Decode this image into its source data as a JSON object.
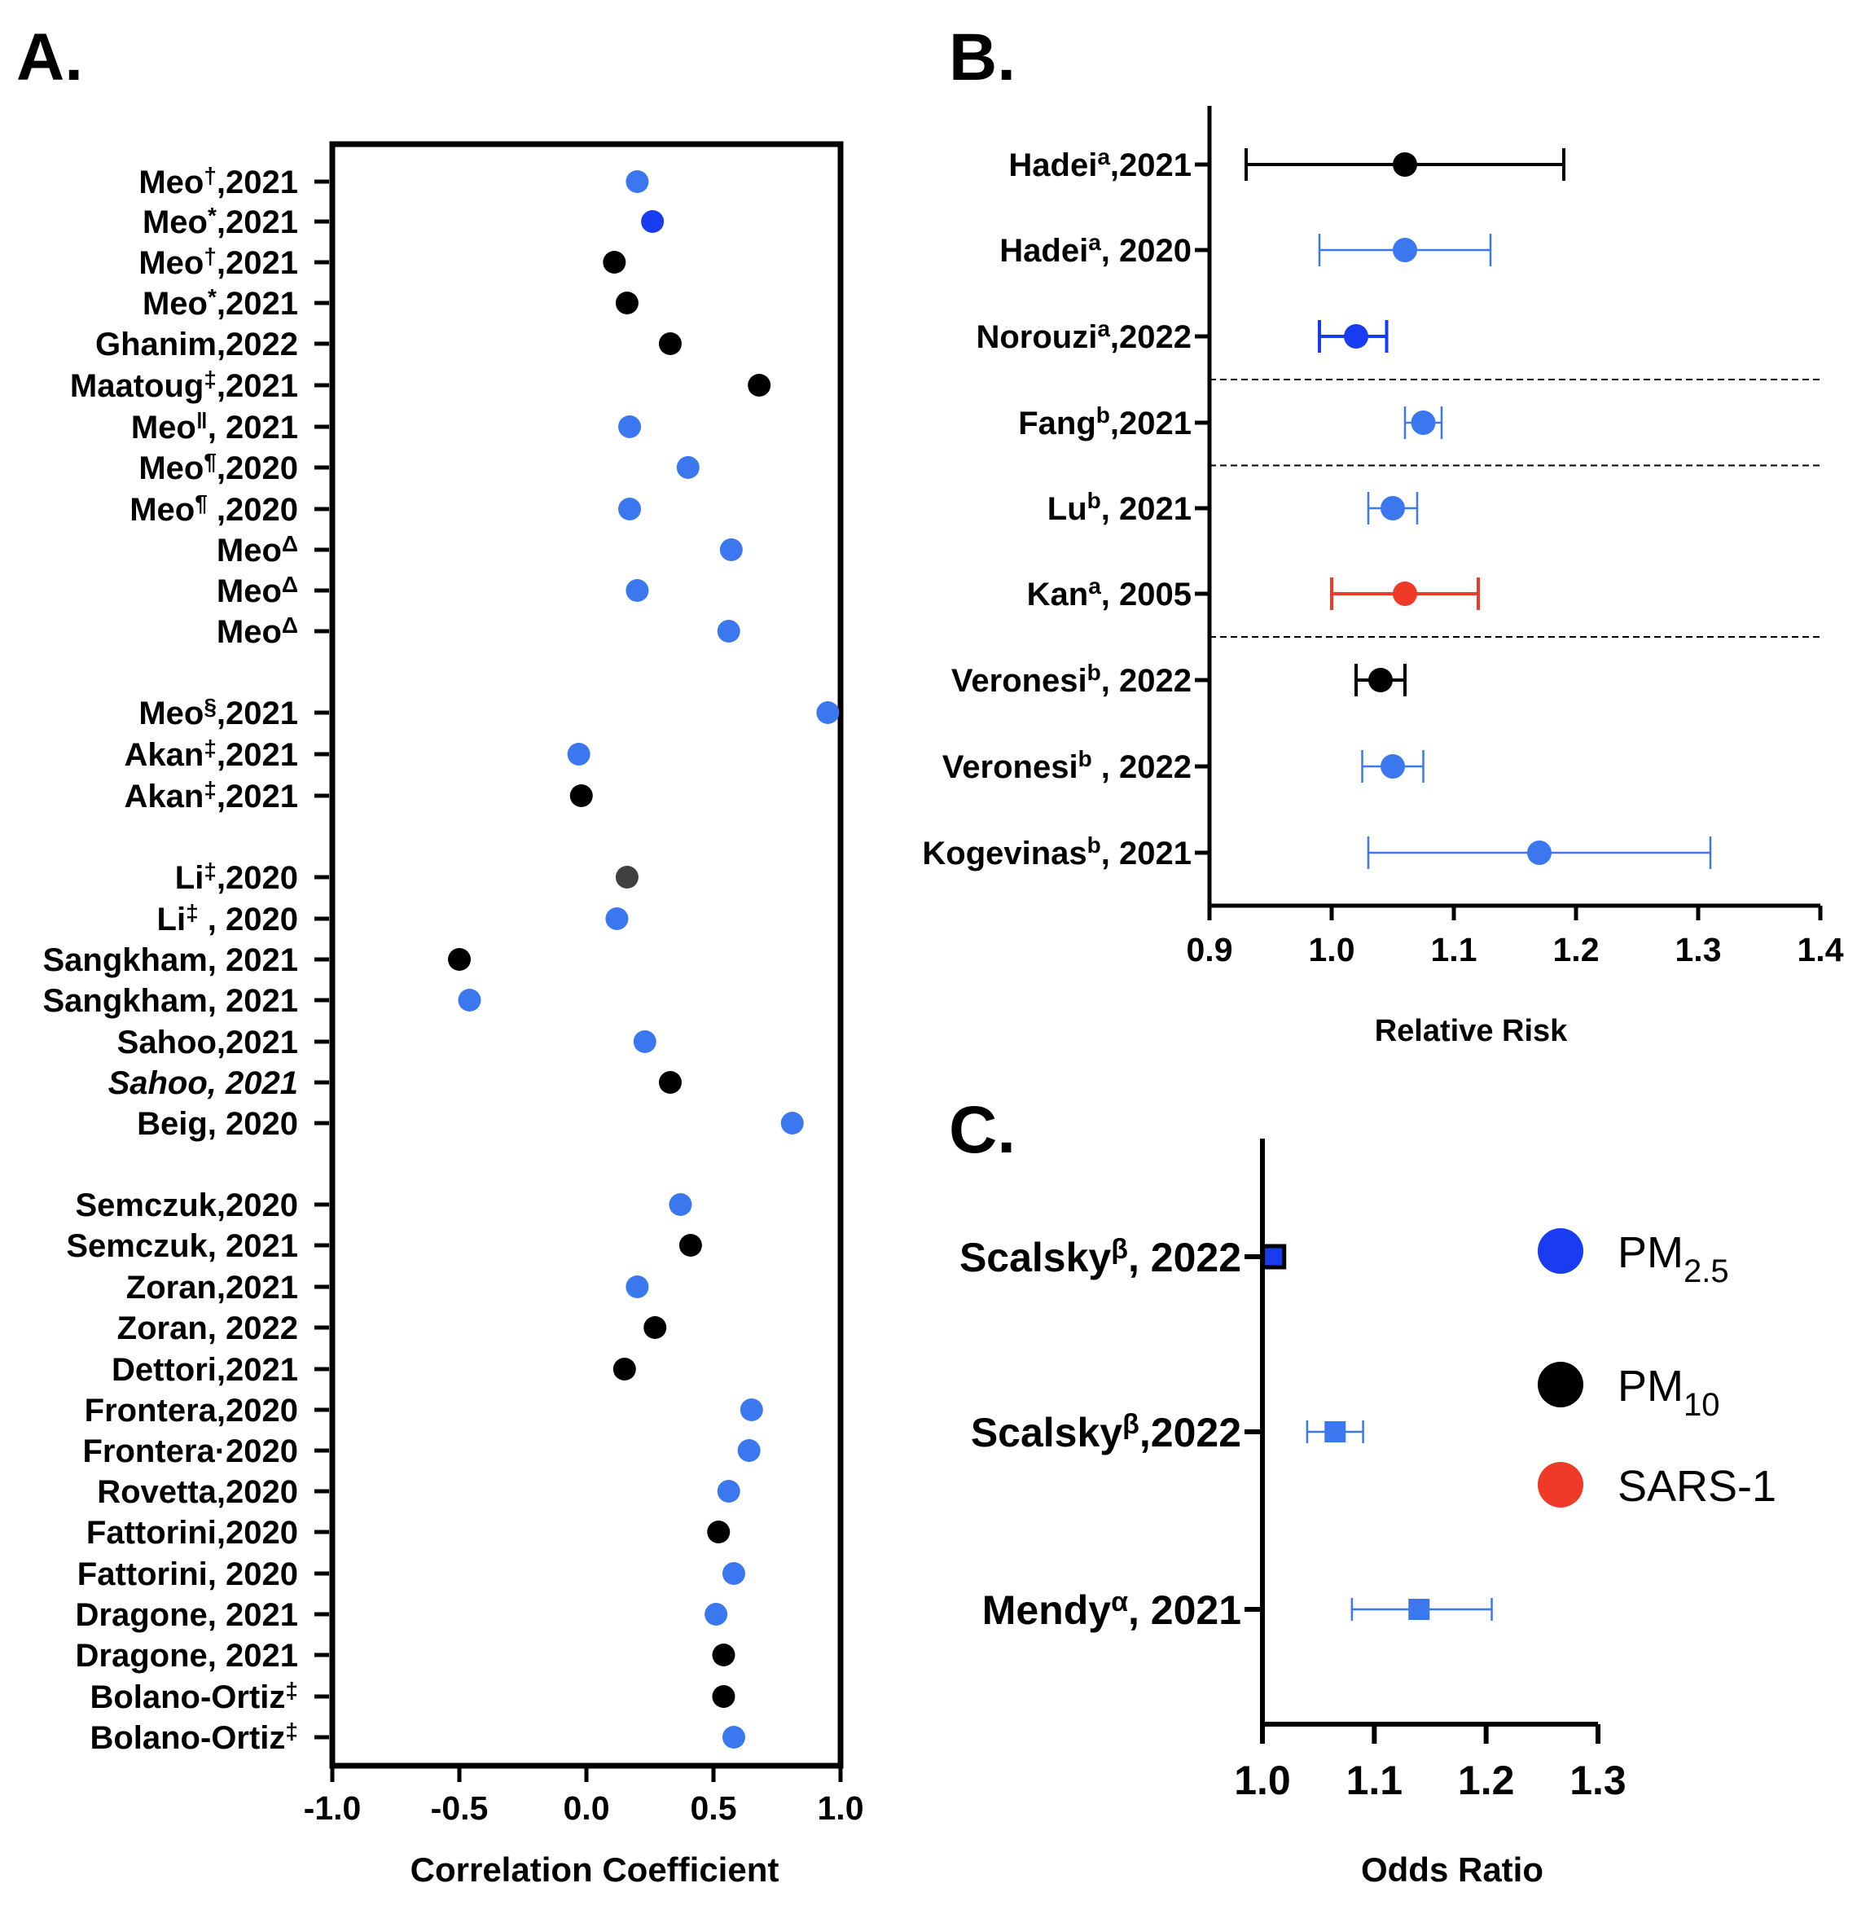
{
  "colors": {
    "pm25": "#3b78ef",
    "pm25_dark": "#1a3cf0",
    "pm10": "#000000",
    "pm10_grey": "#404040",
    "sars1": "#f03a28",
    "axis": "#000000"
  },
  "chart_data": [
    {
      "panel": "A.",
      "type": "scatter",
      "xlabel": "Correlation Coefficient",
      "xlim": [
        -1.0,
        1.0
      ],
      "xticks": [
        "-1.0",
        "-0.5",
        "0.0",
        "0.5",
        "1.0"
      ],
      "xtick_values": [
        -1.0,
        -0.5,
        0.0,
        0.5,
        1.0
      ],
      "grid": false,
      "rows": [
        {
          "label": "Meo",
          "sup": "†",
          "rest": ",2021",
          "italic": false,
          "value": 0.2,
          "color": "pm25"
        },
        {
          "label": "Meo",
          "sup": "*",
          "rest": ",2021",
          "italic": false,
          "value": 0.26,
          "color": "pm25_dark"
        },
        {
          "label": "Meo",
          "sup": "†",
          "rest": ",2021",
          "italic": false,
          "value": 0.11,
          "color": "pm10"
        },
        {
          "label": "Meo",
          "sup": "*",
          "rest": ",2021",
          "italic": false,
          "value": 0.16,
          "color": "pm10"
        },
        {
          "label": "Ghanim,2022",
          "sup": "",
          "rest": "",
          "italic": false,
          "value": 0.33,
          "color": "pm10"
        },
        {
          "label": "Maatoug",
          "sup": "‡",
          "rest": ",2021",
          "italic": false,
          "value": 0.68,
          "color": "pm10"
        },
        {
          "label": "Meo",
          "sup": "ǁ",
          "rest": ", 2021",
          "italic": false,
          "value": 0.17,
          "color": "pm25"
        },
        {
          "label": "Meo",
          "sup": "¶",
          "rest": ",2020",
          "italic": false,
          "value": 0.4,
          "color": "pm25"
        },
        {
          "label": "Meo",
          "sup": "¶",
          "rest": " ,2020",
          "italic": false,
          "value": 0.17,
          "color": "pm25"
        },
        {
          "label": "Meo",
          "sup": "Δ",
          "rest": "",
          "italic": false,
          "value": 0.57,
          "color": "pm25"
        },
        {
          "label": "Meo",
          "sup": "Δ",
          "rest": "",
          "italic": false,
          "value": 0.2,
          "color": "pm25"
        },
        {
          "label": "Meo",
          "sup": "Δ",
          "rest": "",
          "italic": false,
          "value": 0.56,
          "color": "pm25"
        },
        {
          "label": "Meo",
          "sup": "§",
          "rest": ",2021",
          "italic": false,
          "value": 0.95,
          "color": "pm25"
        },
        {
          "label": "Akan",
          "sup": "‡",
          "rest": ",2021",
          "italic": false,
          "value": -0.03,
          "color": "pm25"
        },
        {
          "label": "Akan",
          "sup": "‡",
          "rest": ",2021",
          "italic": false,
          "value": -0.02,
          "color": "pm10"
        },
        {
          "label": "Li",
          "sup": "‡",
          "rest": ",2020",
          "italic": false,
          "value": 0.16,
          "color": "pm10_grey"
        },
        {
          "label": "Li",
          "sup": "‡",
          "rest": " , 2020",
          "italic": false,
          "value": 0.12,
          "color": "pm25"
        },
        {
          "label": "Sangkham, 2021",
          "sup": "",
          "rest": "",
          "italic": false,
          "value": -0.5,
          "color": "pm10"
        },
        {
          "label": "Sangkham, 2021",
          "sup": "",
          "rest": "",
          "italic": false,
          "value": -0.46,
          "color": "pm25"
        },
        {
          "label": "Sahoo,2021",
          "sup": "",
          "rest": "",
          "italic": false,
          "value": 0.23,
          "color": "pm25"
        },
        {
          "label": "Sahoo, 2021",
          "sup": "",
          "rest": "",
          "italic": true,
          "value": 0.33,
          "color": "pm10"
        },
        {
          "label": "Beig, 2020",
          "sup": "",
          "rest": "",
          "italic": false,
          "value": 0.81,
          "color": "pm25"
        },
        {
          "label": "Semczuk,2020",
          "sup": "",
          "rest": "",
          "italic": false,
          "value": 0.37,
          "color": "pm25"
        },
        {
          "label": "Semczuk, 2021",
          "sup": "",
          "rest": "",
          "italic": false,
          "value": 0.41,
          "color": "pm10"
        },
        {
          "label": "Zoran,2021",
          "sup": "",
          "rest": "",
          "italic": false,
          "value": 0.2,
          "color": "pm25"
        },
        {
          "label": "Zoran, 2022",
          "sup": "",
          "rest": "",
          "italic": false,
          "value": 0.27,
          "color": "pm10"
        },
        {
          "label": "Dettori,2021",
          "sup": "",
          "rest": "",
          "italic": false,
          "value": 0.15,
          "color": "pm10"
        },
        {
          "label": "Frontera,2020",
          "sup": "",
          "rest": "",
          "italic": false,
          "value": 0.65,
          "color": "pm25"
        },
        {
          "label": "Frontera",
          "sup": "",
          "rest": "·2020",
          "italic": false,
          "value": 0.64,
          "color": "pm25"
        },
        {
          "label": "Rovetta,2020",
          "sup": "",
          "rest": "",
          "italic": false,
          "value": 0.56,
          "color": "pm25"
        },
        {
          "label": "Fattorini,2020",
          "sup": "",
          "rest": "",
          "italic": false,
          "value": 0.52,
          "color": "pm10"
        },
        {
          "label": "Fattorini, 2020",
          "sup": "",
          "rest": "",
          "italic": false,
          "value": 0.58,
          "color": "pm25"
        },
        {
          "label": "Dragone, 2021",
          "sup": "",
          "rest": "",
          "italic": false,
          "value": 0.51,
          "color": "pm25"
        },
        {
          "label": "Dragone, 2021",
          "sup": "",
          "rest": "",
          "italic": false,
          "value": 0.54,
          "color": "pm10"
        },
        {
          "label": "Bolano-Ortiz",
          "sup": "‡",
          "rest": "",
          "italic": false,
          "value": 0.54,
          "color": "pm10"
        },
        {
          "label": "Bolano-Ortiz",
          "sup": "‡",
          "rest": "",
          "italic": false,
          "value": 0.58,
          "color": "pm25"
        }
      ]
    },
    {
      "panel": "B.",
      "type": "scatter",
      "xlabel": "Relative Risk",
      "xlim": [
        0.9,
        1.4
      ],
      "xticks": [
        "0.9",
        "1.0",
        "1.1",
        "1.2",
        "1.3",
        "1.4"
      ],
      "xtick_values": [
        0.9,
        1.0,
        1.1,
        1.2,
        1.3,
        1.4
      ],
      "grid": false,
      "rows": [
        {
          "label": "Hadei",
          "sup": "a",
          "rest": ",2021",
          "value": 1.06,
          "lower": 0.93,
          "upper": 1.19,
          "color": "pm10"
        },
        {
          "label": "Hadei",
          "sup": "a",
          "rest": ", 2020",
          "value": 1.06,
          "lower": 0.99,
          "upper": 1.13,
          "color": "pm25"
        },
        {
          "label": "Norouzi",
          "sup": "a",
          "rest": ",2022",
          "value": 1.02,
          "lower": 0.99,
          "upper": 1.045,
          "color": "pm25_dark"
        },
        {
          "label": "Fang",
          "sup": "b",
          "rest": ",2021",
          "value": 1.075,
          "lower": 1.06,
          "upper": 1.09,
          "color": "pm25"
        },
        {
          "label": "Lu",
          "sup": "b",
          "rest": ", 2021",
          "value": 1.05,
          "lower": 1.03,
          "upper": 1.07,
          "color": "pm25"
        },
        {
          "label": "Kan",
          "sup": "a",
          "rest": ", 2005",
          "value": 1.06,
          "lower": 1.0,
          "upper": 1.12,
          "color": "sars1"
        },
        {
          "label": "Veronesi",
          "sup": "b",
          "rest": ", 2022",
          "value": 1.04,
          "lower": 1.02,
          "upper": 1.06,
          "color": "pm10"
        },
        {
          "label": "Veronesi",
          "sup": "b",
          "rest": " , 2022",
          "value": 1.05,
          "lower": 1.025,
          "upper": 1.075,
          "color": "pm25"
        },
        {
          "label": "Kogevinas",
          "sup": "b",
          "rest": ", 2021",
          "value": 1.17,
          "lower": 1.03,
          "upper": 1.31,
          "color": "pm25"
        }
      ],
      "separators_after_rows": [
        3,
        4,
        6
      ]
    },
    {
      "panel": "C.",
      "type": "scatter",
      "xlabel": "Odds Ratio",
      "xlim": [
        1.0,
        1.3
      ],
      "xticks": [
        "1.0",
        "1.1",
        "1.2",
        "1.3"
      ],
      "xtick_values": [
        1.0,
        1.1,
        1.2,
        1.3
      ],
      "grid": false,
      "rows": [
        {
          "label": "Scalsky",
          "sup": "β",
          "rest": ", 2022",
          "value": 1.01,
          "lower": 1.005,
          "upper": 1.02,
          "color": "pm25_dark"
        },
        {
          "label": "Scalsky",
          "sup": "β",
          "rest": ",2022",
          "value": 1.065,
          "lower": 1.04,
          "upper": 1.09,
          "color": "pm25"
        },
        {
          "label": "Mendy",
          "sup": "α",
          "rest": ", 2021",
          "value": 1.14,
          "lower": 1.08,
          "upper": 1.205,
          "color": "pm25"
        }
      ]
    }
  ],
  "legend": {
    "position": "right of panel C",
    "items": [
      {
        "main": "PM",
        "sub": "2.5",
        "color": "pm25_dark"
      },
      {
        "main": "PM",
        "sub": "10",
        "color": "pm10"
      },
      {
        "main": "SARS-1",
        "sub": "",
        "color": "sars1"
      }
    ]
  }
}
